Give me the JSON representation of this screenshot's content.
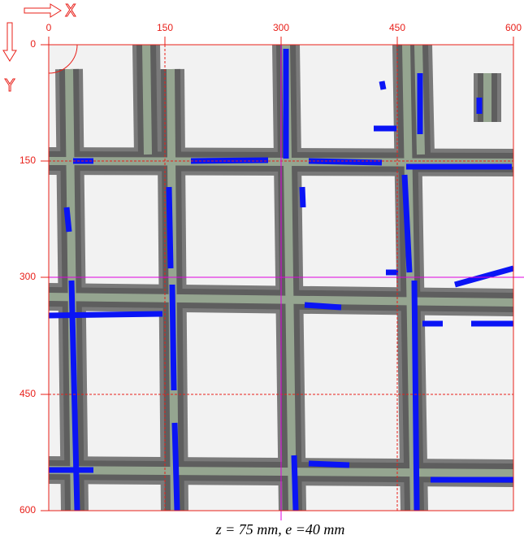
{
  "axes": {
    "x_label": "X",
    "y_label": "Y",
    "x_ticks": [
      "0",
      "150",
      "300",
      "450",
      "600"
    ],
    "y_ticks": [
      "0",
      "150",
      "300",
      "450",
      "600"
    ]
  },
  "caption": "z = 75 mm, e =40 mm"
}
